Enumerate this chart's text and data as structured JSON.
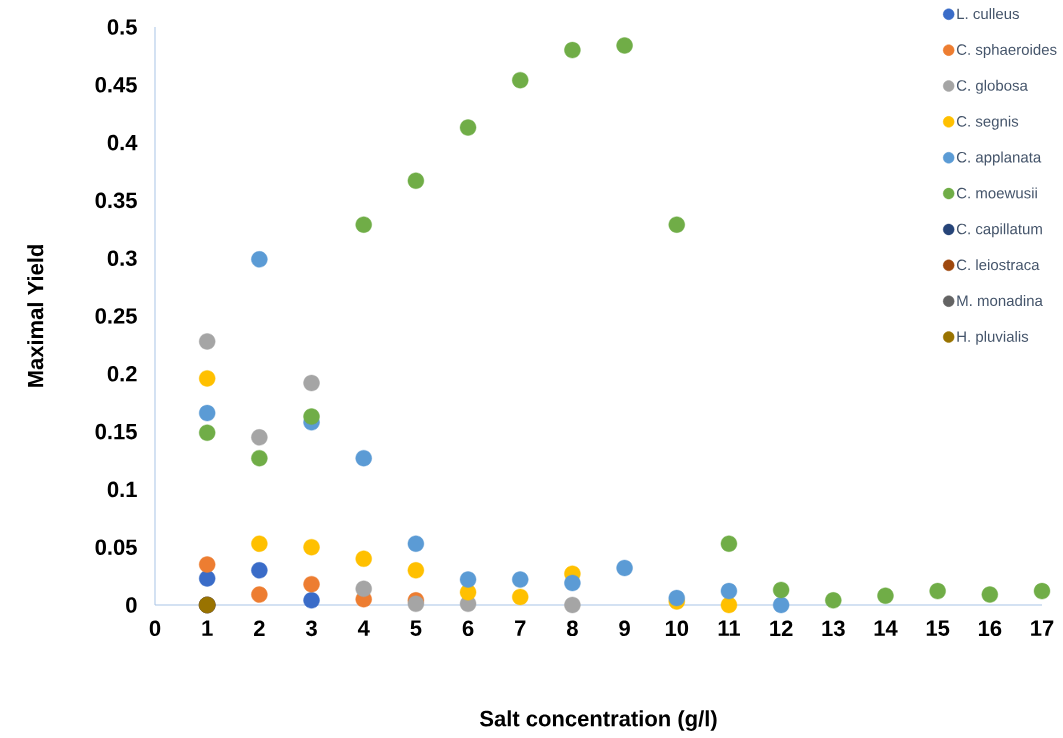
{
  "chart_data": {
    "type": "scatter",
    "xlabel": "Salt concentration (g/l)",
    "ylabel": "Maximal Yield",
    "xlim": [
      0,
      17
    ],
    "xticks": [
      0,
      1,
      2,
      3,
      4,
      5,
      6,
      7,
      8,
      9,
      10,
      11,
      12,
      13,
      14,
      15,
      16,
      17
    ],
    "ylim": [
      0,
      0.5
    ],
    "yticks": [
      0,
      0.05,
      0.1,
      0.15,
      0.2,
      0.25,
      0.3,
      0.35,
      0.4,
      0.45,
      0.5
    ],
    "grid": false,
    "legend": "top right",
    "series": [
      {
        "name": "L. culleus",
        "color": "#3a6cc8",
        "x": [
          1,
          2,
          3
        ],
        "values": [
          0.023,
          0.03,
          0.004
        ]
      },
      {
        "name": "C. sphaeroides",
        "color": "#ed7d31",
        "x": [
          1,
          2,
          3,
          4,
          5
        ],
        "values": [
          0.035,
          0.009,
          0.018,
          0.005,
          0.004
        ]
      },
      {
        "name": "C. globosa",
        "color": "#a5a5a5",
        "x": [
          1,
          2,
          3,
          4,
          5,
          6,
          8
        ],
        "values": [
          0.228,
          0.145,
          0.192,
          0.014,
          0.001,
          0.001,
          0
        ]
      },
      {
        "name": "C. segnis",
        "color": "#ffc000",
        "x": [
          1,
          2,
          3,
          4,
          5,
          6,
          7,
          8,
          10,
          11
        ],
        "values": [
          0.196,
          0.053,
          0.05,
          0.04,
          0.03,
          0.011,
          0.007,
          0.027,
          0.003,
          0
        ]
      },
      {
        "name": "C. applanata",
        "color": "#5b9bd5",
        "x": [
          1,
          2,
          3,
          4,
          5,
          6,
          7,
          8,
          9,
          10,
          11,
          12
        ],
        "values": [
          0.166,
          0.299,
          0.158,
          0.127,
          0.053,
          0.022,
          0.022,
          0.019,
          0.032,
          0.006,
          0.012,
          0
        ]
      },
      {
        "name": "C. moewusii",
        "color": "#70ad47",
        "x": [
          1,
          2,
          3,
          4,
          5,
          6,
          7,
          8,
          9,
          10,
          11,
          12,
          13,
          14,
          15,
          16,
          17
        ],
        "values": [
          0.149,
          0.127,
          0.163,
          0.329,
          0.367,
          0.413,
          0.454,
          0.48,
          0.484,
          0.329,
          0.053,
          0.013,
          0.004,
          0.008,
          0.012,
          0.009,
          0.012
        ]
      },
      {
        "name": "C. capillatum",
        "color": "#264478",
        "x": [
          1
        ],
        "values": [
          0
        ]
      },
      {
        "name": "C. leiostraca",
        "color": "#9e480e",
        "x": [
          1
        ],
        "values": [
          0
        ]
      },
      {
        "name": "M. monadina",
        "color": "#636363",
        "x": [
          1
        ],
        "values": [
          0
        ]
      },
      {
        "name": "H. pluvialis",
        "color": "#997300",
        "x": [
          1
        ],
        "values": [
          0
        ]
      }
    ]
  }
}
